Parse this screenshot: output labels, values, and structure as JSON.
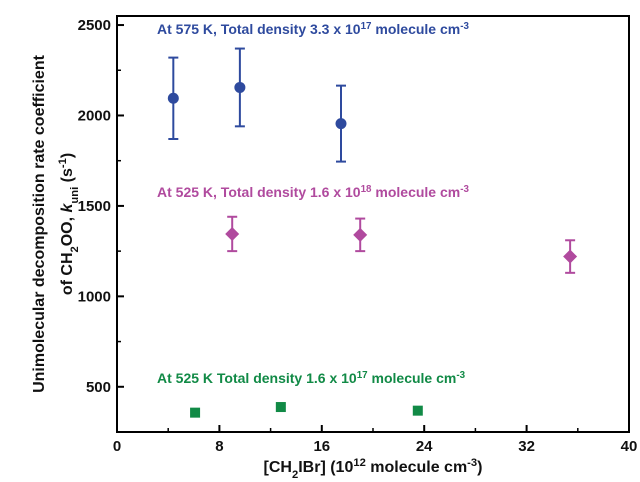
{
  "chart_data": {
    "type": "scatter",
    "xlabel": {
      "parts": [
        {
          "t": "[CH"
        },
        {
          "t": "2",
          "sub": true
        },
        {
          "t": "IBr] (10"
        },
        {
          "t": "12",
          "sup": true
        },
        {
          "t": " molecule cm"
        },
        {
          "t": "-3",
          "sup": true
        },
        {
          "t": ")"
        }
      ]
    },
    "ylabel": {
      "line1": "Unimolecular decomposition rate coefficient",
      "line2_parts": [
        {
          "t": "of CH"
        },
        {
          "t": "2",
          "sub": true
        },
        {
          "t": "OO, "
        },
        {
          "t": "k",
          "italic": true
        },
        {
          "t": "uni",
          "sub": true
        },
        {
          "t": " (s"
        },
        {
          "t": "-1",
          "sup": true
        },
        {
          "t": ")"
        }
      ]
    },
    "xlim": [
      0,
      40
    ],
    "ylim": [
      250,
      2550
    ],
    "xticks": [
      0,
      8,
      16,
      24,
      32,
      40
    ],
    "yticks": [
      500,
      1000,
      1500,
      2000,
      2500
    ],
    "grid": false,
    "series": [
      {
        "color": "#2E4A9E",
        "marker": "circle",
        "label_parts": [
          {
            "t": "At 575 K,  Total density 3.3 x 10"
          },
          {
            "t": "17",
            "sup": true
          },
          {
            "t": " molecule cm"
          },
          {
            "t": "-3",
            "sup": true
          }
        ],
        "points": [
          {
            "x": 4.4,
            "y": 2095,
            "err": 225
          },
          {
            "x": 9.6,
            "y": 2155,
            "err": 215
          },
          {
            "x": 17.5,
            "y": 1955,
            "err": 210
          }
        ]
      },
      {
        "color": "#B04A9E",
        "marker": "diamond",
        "label_parts": [
          {
            "t": "At 525 K,  Total density 1.6 x 10"
          },
          {
            "t": "18",
            "sup": true
          },
          {
            "t": " molecule cm"
          },
          {
            "t": "-3",
            "sup": true
          }
        ],
        "points": [
          {
            "x": 9.0,
            "y": 1345,
            "err": 95
          },
          {
            "x": 19.0,
            "y": 1340,
            "err": 90
          },
          {
            "x": 35.4,
            "y": 1220,
            "err": 90
          }
        ]
      },
      {
        "color": "#118A46",
        "marker": "square",
        "label_parts": [
          {
            "t": "At 525 K Total density 1.6 x 10"
          },
          {
            "t": "17",
            "sup": true
          },
          {
            "t": " molecule cm"
          },
          {
            "t": "-3",
            "sup": true
          }
        ],
        "points": [
          {
            "x": 6.1,
            "y": 357,
            "err": 10
          },
          {
            "x": 12.8,
            "y": 388,
            "err": 10
          },
          {
            "x": 23.5,
            "y": 368,
            "err": 10
          }
        ]
      }
    ]
  }
}
